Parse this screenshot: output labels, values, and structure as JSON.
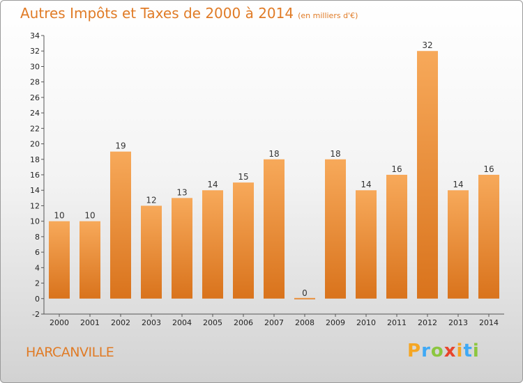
{
  "header": {
    "title": "Autres Impôts et Taxes de 2000 à 2014",
    "unit": "(en milliers d'€)"
  },
  "footer": {
    "town": "HARCANVILLE",
    "logo_letters": [
      "P",
      "r",
      "o",
      "x",
      "i",
      "t",
      "i"
    ],
    "logo_colors": [
      "#f5a623",
      "#3fa9f5",
      "#8cc63f",
      "#e8452c",
      "#f5a623",
      "#3fa9f5",
      "#8cc63f"
    ]
  },
  "colors": {
    "accent": "#e07b26",
    "bar_top": "#f7a95a",
    "bar_bottom": "#d9731c"
  },
  "chart_data": {
    "type": "bar",
    "title": "Autres Impôts et Taxes de 2000 à 2014",
    "subtitle": "(en milliers d'€)",
    "categories": [
      "2000",
      "2001",
      "2002",
      "2003",
      "2004",
      "2005",
      "2006",
      "2007",
      "2008",
      "2009",
      "2010",
      "2011",
      "2012",
      "2013",
      "2014"
    ],
    "values": [
      10,
      10,
      19,
      12,
      13,
      14,
      15,
      18,
      0,
      18,
      14,
      16,
      32,
      14,
      16
    ],
    "ylim": [
      -2,
      34
    ],
    "yticks": [
      -2,
      0,
      2,
      4,
      6,
      8,
      10,
      12,
      14,
      16,
      18,
      20,
      22,
      24,
      26,
      28,
      30,
      32,
      34
    ],
    "grid": false,
    "legend": "none"
  }
}
